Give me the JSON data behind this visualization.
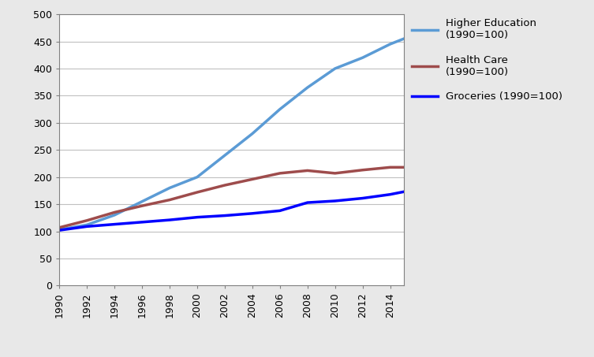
{
  "years": [
    1990,
    1992,
    1994,
    1996,
    1998,
    2000,
    2002,
    2004,
    2006,
    2008,
    2010,
    2012,
    2014,
    2015
  ],
  "higher_education": [
    103,
    112,
    130,
    155,
    180,
    200,
    240,
    280,
    325,
    365,
    400,
    420,
    445,
    455
  ],
  "health_care": [
    107,
    120,
    135,
    147,
    158,
    172,
    185,
    196,
    207,
    212,
    207,
    213,
    218,
    218
  ],
  "groceries": [
    102,
    109,
    113,
    117,
    121,
    126,
    129,
    133,
    138,
    153,
    156,
    161,
    168,
    173
  ],
  "higher_ed_color": "#5b9bd5",
  "health_care_color": "#9e4c4c",
  "groceries_color": "#0000ff",
  "ylim": [
    0,
    500
  ],
  "yticks": [
    0,
    50,
    100,
    150,
    200,
    250,
    300,
    350,
    400,
    450,
    500
  ],
  "legend_higher_ed": "Higher Education\n(1990=100)",
  "legend_health_care": "Health Care\n(1990=100)",
  "legend_groceries": "Groceries (1990=100)",
  "background_color": "#ffffff",
  "outer_background": "#e8e8e8",
  "line_width": 2.5
}
